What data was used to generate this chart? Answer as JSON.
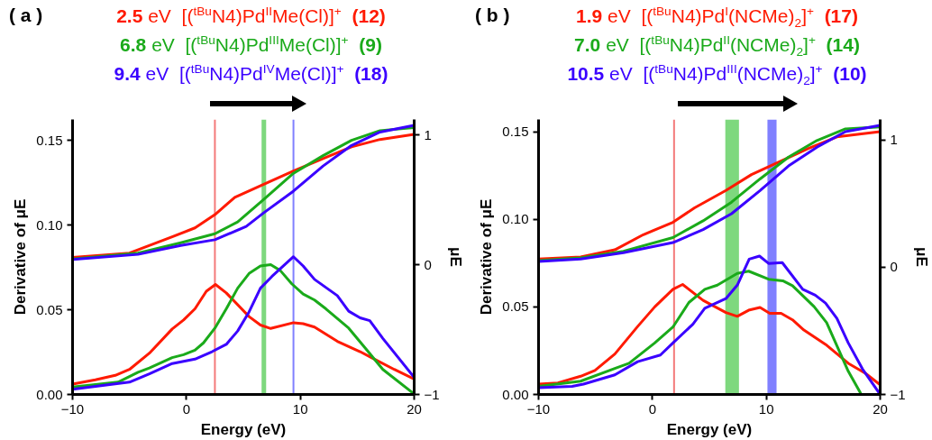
{
  "chart_data": [
    {
      "type": "line",
      "xlabel": "Energy (eV)",
      "ylabel": "Derivative of μE",
      "y2label": "μE",
      "annotations": [
        "( a )"
      ],
      "xlim": [
        -10,
        20
      ],
      "xticks": [
        -10,
        0,
        10,
        20
      ],
      "ylim": [
        0,
        0.1625
      ],
      "yticks": [
        {
          "value": 0,
          "label": "0.00"
        },
        {
          "value": 0.05,
          "label": "0.05"
        },
        {
          "value": 0.1,
          "label": "0.10"
        },
        {
          "value": 0.15,
          "label": "0.15"
        }
      ],
      "y2lim": [
        -1,
        1.12
      ],
      "y2ticks": [
        -1,
        0,
        1
      ],
      "ref_lines": [
        {
          "axis": "x",
          "value": 2.5,
          "color": "#f47a7a"
        },
        {
          "axis": "x",
          "value": 9.4,
          "color": "#8080ff"
        }
      ],
      "bands": [
        {
          "axis": "x",
          "from": 6.6,
          "to": 7.0,
          "color": "#7ed87e"
        }
      ],
      "series": [
        {
          "name": "2.5 eV  [($^{tBu}$N4)Pd$^{II}$Me(Cl)]$^{+}$  (12)",
          "color": "#ff1a00",
          "x": [
            -10,
            -8,
            -6.25,
            -5,
            -3.25,
            -1.25,
            -0.25,
            0.75,
            1.75,
            2.55,
            3.5,
            5.5,
            6.5,
            7.4,
            9.4,
            10.25,
            11.25,
            13.25,
            15.25,
            16.25,
            18.25,
            20
          ],
          "values": [
            0.0061,
            0.0087,
            0.0113,
            0.0148,
            0.0244,
            0.0387,
            0.044,
            0.0506,
            0.061,
            0.065,
            0.06,
            0.046,
            0.041,
            0.039,
            0.0424,
            0.0418,
            0.0398,
            0.0314,
            0.0253,
            0.0218,
            0.0148,
            0.0091
          ]
        },
        {
          "name": "6.8 eV  [($^{tBu}$N4)Pd$^{III}$Me(Cl)]$^{+}$  (9)",
          "color": "#1aaa1a",
          "x": [
            -10,
            -6,
            -4.25,
            -3.25,
            -1.25,
            -0.25,
            0.75,
            1.5,
            2.5,
            3.5,
            4.5,
            5.5,
            6.5,
            7.4,
            8.25,
            9.25,
            10.25,
            11.25,
            12.25,
            14.25,
            15.75,
            17.25,
            20
          ],
          "values": [
            0.0044,
            0.0073,
            0.0131,
            0.0157,
            0.0218,
            0.0235,
            0.0262,
            0.0305,
            0.0392,
            0.0506,
            0.0628,
            0.0715,
            0.0759,
            0.0767,
            0.0732,
            0.0654,
            0.0593,
            0.0558,
            0.0506,
            0.0392,
            0.027,
            0.0148,
            0.0003
          ]
        },
        {
          "name": "9.4 eV  [($^{tBu}$N4)Pd$^{IV}$Me(Cl)]$^{+}$  (18)",
          "color": "#3a00ff",
          "x": [
            -10,
            -5,
            -3.25,
            -1.25,
            0.75,
            2.25,
            3.5,
            4.5,
            5.5,
            6.5,
            7.5,
            9.4,
            10.25,
            11.25,
            13.25,
            14.25,
            15.25,
            16.1,
            17.25,
            20
          ],
          "values": [
            0.0031,
            0.0073,
            0.0122,
            0.0183,
            0.0209,
            0.0253,
            0.0296,
            0.0375,
            0.0488,
            0.0628,
            0.0697,
            0.0814,
            0.0759,
            0.068,
            0.0584,
            0.0492,
            0.0453,
            0.0436,
            0.0331,
            0.0101
          ]
        },
        {
          "color": "#ff1a00",
          "axis": "y2",
          "x": [
            -10,
            -5,
            -1.25,
            0.75,
            2.5,
            4.25,
            6.75,
            9.4,
            12,
            14.5,
            17,
            20
          ],
          "values": [
            0.057,
            0.09,
            0.216,
            0.284,
            0.386,
            0.52,
            0.618,
            0.723,
            0.818,
            0.909,
            0.966,
            1.005
          ]
        },
        {
          "color": "#1aaa1a",
          "axis": "y2",
          "x": [
            -10,
            -4.25,
            -0.5,
            2.5,
            4.5,
            6.75,
            9.4,
            12,
            14.5,
            17,
            20
          ],
          "values": [
            0.045,
            0.09,
            0.17,
            0.239,
            0.33,
            0.5,
            0.705,
            0.841,
            0.959,
            1.034,
            1.057
          ]
        },
        {
          "color": "#3a00ff",
          "axis": "y2",
          "x": [
            -10,
            -4.25,
            -0.5,
            2.5,
            5.25,
            6.75,
            9.4,
            12,
            14.5,
            17,
            20
          ],
          "values": [
            0.041,
            0.08,
            0.148,
            0.193,
            0.295,
            0.398,
            0.568,
            0.761,
            0.92,
            1.023,
            1.075
          ]
        }
      ]
    },
    {
      "type": "line",
      "xlabel": "Energy (eV)",
      "ylabel": "Derivative of μE",
      "y2label": "μE",
      "annotations": [
        "( b )"
      ],
      "xlim": [
        -10,
        20
      ],
      "xticks": [
        -10,
        0,
        10,
        20
      ],
      "ylim": [
        0,
        0.157
      ],
      "yticks": [
        {
          "value": 0,
          "label": "0.00"
        },
        {
          "value": 0.05,
          "label": "0.05"
        },
        {
          "value": 0.1,
          "label": "0.10"
        },
        {
          "value": 0.15,
          "label": "0.15"
        }
      ],
      "y2lim": [
        -1,
        1.16
      ],
      "y2ticks": [
        -1,
        0,
        1
      ],
      "ref_lines": [
        {
          "axis": "x",
          "value": 1.9,
          "color": "#f47a7a"
        }
      ],
      "bands": [
        {
          "axis": "x",
          "from": 6.4,
          "to": 7.6,
          "color": "#7ed87e"
        },
        {
          "axis": "x",
          "from": 10.1,
          "to": 10.9,
          "color": "#8080ff"
        }
      ],
      "series": [
        {
          "name": "1.9 eV  [($^{tBu}$N4)Pd$^{I}$(NCMe)$_{2}$]$^{+}$  (17)",
          "color": "#ff1a00",
          "x": [
            -10,
            -8.3,
            -6.3,
            -5.05,
            -3.3,
            -1.3,
            0.2,
            1.8,
            2.65,
            4.45,
            6.45,
            7.45,
            8.45,
            9.45,
            10.3,
            11.3,
            12.3,
            13.3,
            15.2,
            17.2,
            18.7,
            20
          ],
          "values": [
            0.0059,
            0.0066,
            0.0104,
            0.0137,
            0.0231,
            0.0388,
            0.05,
            0.06,
            0.0628,
            0.0537,
            0.0468,
            0.0446,
            0.0481,
            0.0497,
            0.0463,
            0.0463,
            0.0426,
            0.0368,
            0.0286,
            0.0178,
            0.0121,
            0.0055
          ]
        },
        {
          "name": "7.0 eV  [($^{tBu}$N4)Pd$^{II}$(NCMe)$_{2}$]$^{+}$  (14)",
          "color": "#1aaa1a",
          "x": [
            -10,
            -6.3,
            -3.3,
            -2.05,
            0.2,
            1.8,
            3.2,
            4.6,
            5.7,
            7.45,
            8.45,
            10.2,
            11.45,
            12.3,
            14.2,
            15.3,
            17.2,
            18.3
          ],
          "values": [
            0.0046,
            0.0076,
            0.0149,
            0.0178,
            0.0294,
            0.0385,
            0.0525,
            0.06,
            0.0624,
            0.0691,
            0.0704,
            0.0658,
            0.0649,
            0.0621,
            0.0501,
            0.041,
            0.0132,
            0.0005
          ]
        },
        {
          "name": "10.5 eV  [($^{tBu}$N4)Pd$^{III}$(NCMe)$_{2}$]$^{+}$  (10)",
          "color": "#3a00ff",
          "x": [
            -10,
            -7.05,
            -6.05,
            -3.3,
            -1.3,
            0.7,
            1.8,
            3.55,
            4.6,
            6.45,
            7.45,
            8.5,
            9.4,
            10.2,
            11.4,
            13.2,
            14.3,
            15.2,
            16.2,
            17.2,
            18.45,
            20
          ],
          "values": [
            0.0038,
            0.0046,
            0.0059,
            0.0112,
            0.0187,
            0.0225,
            0.0294,
            0.0401,
            0.0492,
            0.0547,
            0.0624,
            0.0773,
            0.079,
            0.0748,
            0.0753,
            0.06,
            0.0567,
            0.0522,
            0.0434,
            0.0294,
            0.0145,
            0.0
          ]
        },
        {
          "color": "#ff1a00",
          "axis": "y2",
          "x": [
            -10,
            -6.3,
            -3.3,
            -0.8,
            1.8,
            3.7,
            6.45,
            8.7,
            11.2,
            13.7,
            16.2,
            20
          ],
          "values": [
            0.064,
            0.08,
            0.136,
            0.255,
            0.352,
            0.466,
            0.602,
            0.727,
            0.83,
            0.932,
            1.023,
            1.064
          ]
        },
        {
          "color": "#1aaa1a",
          "axis": "y2",
          "x": [
            -10,
            -6.3,
            -2.55,
            1.8,
            4.45,
            6.95,
            9.45,
            11.95,
            14.45,
            16.95,
            20
          ],
          "values": [
            0.052,
            0.073,
            0.125,
            0.232,
            0.364,
            0.511,
            0.693,
            0.864,
            0.995,
            1.086,
            1.102
          ]
        },
        {
          "color": "#3a00ff",
          "axis": "y2",
          "x": [
            -10,
            -6.3,
            -2.55,
            1.8,
            4.45,
            6.95,
            9.45,
            11.95,
            14.45,
            16.95,
            20
          ],
          "values": [
            0.045,
            0.064,
            0.114,
            0.193,
            0.295,
            0.42,
            0.602,
            0.795,
            0.943,
            1.064,
            1.114
          ]
        }
      ]
    }
  ]
}
